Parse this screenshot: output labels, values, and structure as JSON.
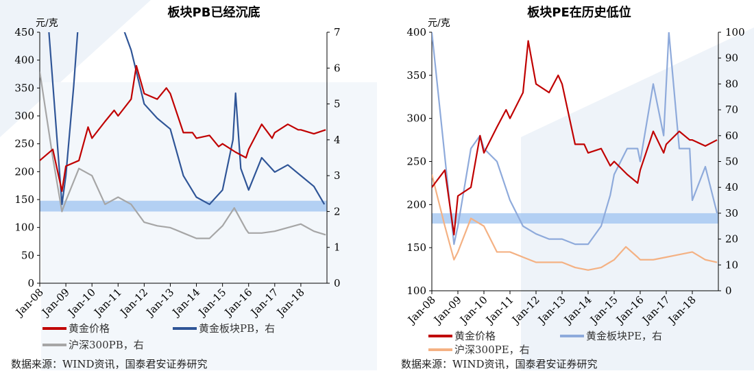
{
  "chart_data": [
    {
      "type": "line",
      "title": "板块PB已经沉底",
      "left_unit": "元/克",
      "ylim_left": [
        0,
        450
      ],
      "yticks_left": [
        0,
        50,
        100,
        150,
        200,
        250,
        300,
        350,
        400,
        450
      ],
      "ylim_right": [
        0,
        7
      ],
      "yticks_right": [
        0,
        1,
        2,
        3,
        4,
        5,
        6,
        7
      ],
      "xticks": [
        "Jan-08",
        "Jan-09",
        "Jan-10",
        "Jan-11",
        "Jan-12",
        "Jan-13",
        "Jan-14",
        "Jan-15",
        "Jan-16",
        "Jan-17",
        "Jan-18"
      ],
      "band_right": [
        2.0,
        2.3
      ],
      "series": [
        {
          "name": "黄金价格",
          "axis": "left",
          "color": "#c00000",
          "x": [
            2008,
            2008.5,
            2008.85,
            2009,
            2009.5,
            2009.85,
            2010,
            2010.5,
            2010.85,
            2011,
            2011.5,
            2011.7,
            2012,
            2012.5,
            2012.85,
            2013,
            2013.5,
            2013.85,
            2014,
            2014.5,
            2014.85,
            2015,
            2015.5,
            2015.9,
            2016,
            2016.5,
            2016.9,
            2017,
            2017.5,
            2017.9,
            2018,
            2018.5,
            2018.95
          ],
          "values": [
            220,
            240,
            165,
            210,
            220,
            280,
            260,
            290,
            310,
            300,
            330,
            390,
            340,
            330,
            350,
            340,
            270,
            270,
            260,
            265,
            245,
            250,
            235,
            225,
            240,
            285,
            260,
            270,
            285,
            275,
            275,
            268,
            275
          ]
        },
        {
          "name": "黄金板块PB，右",
          "axis": "right",
          "color": "#2f5597",
          "x": [
            2008,
            2008.3,
            2008.85,
            2009,
            2009.3,
            2009.5,
            2010,
            2011,
            2011.5,
            2012,
            2012.5,
            2013,
            2013.5,
            2014,
            2014.5,
            2015,
            2015.4,
            2015.5,
            2015.7,
            2016,
            2016.5,
            2017,
            2017.5,
            2018,
            2018.5,
            2018.9
          ],
          "values": [
            7.5,
            7.5,
            2.2,
            3.0,
            5.5,
            7.5,
            7.5,
            7.5,
            6.5,
            5.0,
            4.6,
            4.3,
            3.0,
            2.4,
            2.2,
            2.6,
            4.0,
            5.3,
            3.2,
            2.6,
            3.5,
            3.1,
            3.3,
            3.0,
            2.7,
            2.2
          ]
        },
        {
          "name": "沪深300PB，右",
          "axis": "right",
          "color": "#a6a6a6",
          "x": [
            2008,
            2008.5,
            2008.85,
            2009,
            2009.5,
            2010,
            2010.5,
            2011,
            2011.5,
            2012,
            2012.5,
            2013,
            2013.5,
            2014,
            2014.5,
            2015,
            2015.45,
            2015.9,
            2016,
            2016.5,
            2017,
            2017.5,
            2018,
            2018.5,
            2018.95
          ],
          "values": [
            5.9,
            3.5,
            2.0,
            2.3,
            3.2,
            3.0,
            2.2,
            2.4,
            2.2,
            1.7,
            1.6,
            1.55,
            1.4,
            1.25,
            1.25,
            1.6,
            2.1,
            1.5,
            1.4,
            1.4,
            1.45,
            1.55,
            1.65,
            1.45,
            1.35
          ]
        }
      ]
    },
    {
      "type": "line",
      "title": "板块PE在历史低位",
      "left_unit": "元/克",
      "ylim_left": [
        100,
        400
      ],
      "yticks_left": [
        100,
        150,
        200,
        250,
        300,
        350,
        400
      ],
      "ylim_right": [
        0,
        100
      ],
      "yticks_right": [
        0,
        10,
        20,
        30,
        40,
        50,
        60,
        70,
        80,
        90,
        100
      ],
      "xticks": [
        "Jan-08",
        "Jan-09",
        "Jan-10",
        "Jan-11",
        "Jan-12",
        "Jan-13",
        "Jan-14",
        "Jan-15",
        "Jan-16",
        "Jan-17",
        "Jan-18"
      ],
      "band_right": [
        26,
        30
      ],
      "series": [
        {
          "name": "黄金价格",
          "axis": "left",
          "color": "#c00000",
          "x": [
            2008,
            2008.5,
            2008.85,
            2009,
            2009.5,
            2009.85,
            2010,
            2010.5,
            2010.85,
            2011,
            2011.5,
            2011.7,
            2012,
            2012.5,
            2012.85,
            2013,
            2013.5,
            2013.85,
            2014,
            2014.5,
            2014.85,
            2015,
            2015.5,
            2015.9,
            2016,
            2016.5,
            2016.9,
            2017,
            2017.5,
            2017.9,
            2018,
            2018.5,
            2018.95
          ],
          "values": [
            220,
            240,
            165,
            210,
            220,
            280,
            260,
            290,
            310,
            300,
            330,
            390,
            340,
            330,
            350,
            340,
            270,
            270,
            260,
            265,
            245,
            250,
            235,
            225,
            240,
            285,
            260,
            270,
            285,
            275,
            275,
            268,
            275
          ]
        },
        {
          "name": "黄金板块PE，右",
          "axis": "right",
          "color": "#8eaadb",
          "x": [
            2008,
            2008.85,
            2009,
            2009.5,
            2009.85,
            2010,
            2010.5,
            2011,
            2011.5,
            2012,
            2012.5,
            2013,
            2013.5,
            2014,
            2014.5,
            2014.85,
            2015,
            2015.5,
            2015.9,
            2016,
            2016.5,
            2016.9,
            2017.1,
            2017.5,
            2017.9,
            2018,
            2018.5,
            2018.95
          ],
          "values": [
            100,
            18,
            25,
            55,
            60,
            55,
            50,
            35,
            25,
            22,
            20,
            20,
            18,
            18,
            25,
            37,
            45,
            55,
            55,
            50,
            80,
            60,
            100,
            55,
            55,
            35,
            48,
            30
          ]
        },
        {
          "name": "沪深300PE，右",
          "axis": "right",
          "color": "#f4b183",
          "x": [
            2008,
            2008.5,
            2008.85,
            2009,
            2009.5,
            2010,
            2010.5,
            2011,
            2011.5,
            2012,
            2012.5,
            2013,
            2013.5,
            2014,
            2014.5,
            2015,
            2015.45,
            2015.9,
            2016,
            2016.5,
            2017,
            2017.5,
            2018,
            2018.5,
            2018.95
          ],
          "values": [
            45,
            25,
            12,
            15,
            28,
            25,
            15,
            15,
            13,
            11,
            11,
            11,
            9,
            8,
            9,
            12,
            17,
            13,
            12,
            12,
            13,
            14,
            15,
            12,
            11
          ]
        }
      ]
    }
  ],
  "source": "数据来源：WIND资讯，国泰君安证券研究"
}
